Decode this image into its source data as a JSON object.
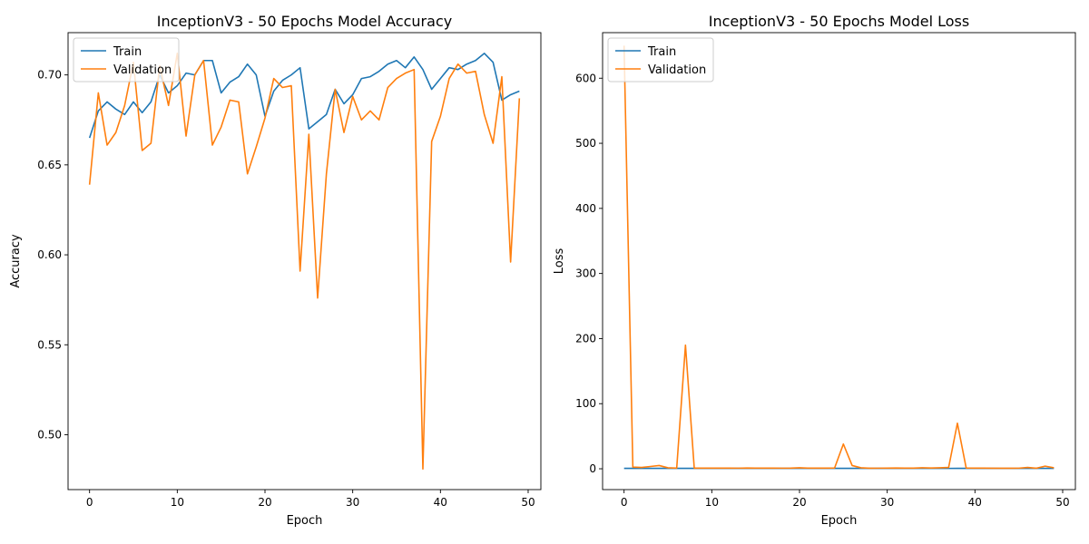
{
  "chart_data": [
    {
      "type": "line",
      "title": "InceptionV3 - 50 Epochs Model Accuracy",
      "xlabel": "Epoch",
      "ylabel": "Accuracy",
      "xlim": [
        -2.45,
        51.45
      ],
      "ylim": [
        0.4695,
        0.7235
      ],
      "xticks": [
        0,
        10,
        20,
        30,
        40,
        50
      ],
      "yticks": [
        0.5,
        0.55,
        0.6,
        0.65,
        0.7
      ],
      "ytick_labels": [
        "0.50",
        "0.55",
        "0.60",
        "0.65",
        "0.70"
      ],
      "grid": false,
      "legend": "upper left",
      "x": [
        0,
        1,
        2,
        3,
        4,
        5,
        6,
        7,
        8,
        9,
        10,
        11,
        12,
        13,
        14,
        15,
        16,
        17,
        18,
        19,
        20,
        21,
        22,
        23,
        24,
        25,
        26,
        27,
        28,
        29,
        30,
        31,
        32,
        33,
        34,
        35,
        36,
        37,
        38,
        39,
        40,
        41,
        42,
        43,
        44,
        45,
        46,
        47,
        48,
        49
      ],
      "series": [
        {
          "name": "Train",
          "color": "#1f77b4",
          "values": [
            0.665,
            0.68,
            0.685,
            0.681,
            0.678,
            0.685,
            0.679,
            0.685,
            0.7,
            0.69,
            0.694,
            0.701,
            0.7,
            0.708,
            0.708,
            0.69,
            0.696,
            0.699,
            0.706,
            0.7,
            0.677,
            0.691,
            0.697,
            0.7,
            0.704,
            0.67,
            0.674,
            0.678,
            0.692,
            0.684,
            0.689,
            0.698,
            0.699,
            0.702,
            0.706,
            0.708,
            0.704,
            0.71,
            0.703,
            0.692,
            0.698,
            0.704,
            0.703,
            0.706,
            0.708,
            0.712,
            0.707,
            0.686,
            0.689,
            0.691
          ]
        },
        {
          "name": "Validation",
          "color": "#ff7f0e",
          "values": [
            0.639,
            0.69,
            0.661,
            0.668,
            0.683,
            0.707,
            0.658,
            0.662,
            0.705,
            0.683,
            0.712,
            0.666,
            0.7,
            0.708,
            0.661,
            0.671,
            0.686,
            0.685,
            0.645,
            0.66,
            0.676,
            0.698,
            0.693,
            0.694,
            0.591,
            0.667,
            0.576,
            0.645,
            0.692,
            0.668,
            0.688,
            0.675,
            0.68,
            0.675,
            0.693,
            0.698,
            0.701,
            0.703,
            0.481,
            0.663,
            0.677,
            0.698,
            0.706,
            0.701,
            0.702,
            0.678,
            0.662,
            0.699,
            0.596,
            0.687
          ]
        }
      ]
    },
    {
      "type": "line",
      "title": "InceptionV3 - 50 Epochs Model Loss",
      "xlabel": "Epoch",
      "ylabel": "Loss",
      "xlim": [
        -2.45,
        51.45
      ],
      "ylim": [
        -32,
        670
      ],
      "xticks": [
        0,
        10,
        20,
        30,
        40,
        50
      ],
      "yticks": [
        0,
        100,
        200,
        300,
        400,
        500,
        600
      ],
      "ytick_labels": [
        "0",
        "100",
        "200",
        "300",
        "400",
        "500",
        "600"
      ],
      "grid": false,
      "legend": "upper left",
      "x": [
        0,
        1,
        2,
        3,
        4,
        5,
        6,
        7,
        8,
        9,
        10,
        11,
        12,
        13,
        14,
        15,
        16,
        17,
        18,
        19,
        20,
        21,
        22,
        23,
        24,
        25,
        26,
        27,
        28,
        29,
        30,
        31,
        32,
        33,
        34,
        35,
        36,
        37,
        38,
        39,
        40,
        41,
        42,
        43,
        44,
        45,
        46,
        47,
        48,
        49
      ],
      "series": [
        {
          "name": "Train",
          "color": "#1f77b4",
          "values": [
            0.7,
            0.65,
            0.63,
            0.64,
            0.65,
            0.63,
            0.64,
            0.63,
            0.61,
            0.62,
            0.61,
            0.6,
            0.61,
            0.59,
            0.59,
            0.61,
            0.6,
            0.6,
            0.59,
            0.6,
            0.62,
            0.61,
            0.6,
            0.59,
            0.59,
            0.62,
            0.62,
            0.61,
            0.6,
            0.61,
            0.6,
            0.59,
            0.59,
            0.59,
            0.58,
            0.58,
            0.58,
            0.57,
            0.58,
            0.59,
            0.58,
            0.57,
            0.58,
            0.57,
            0.57,
            0.56,
            0.57,
            0.6,
            0.59,
            0.59
          ]
        },
        {
          "name": "Validation",
          "color": "#ff7f0e",
          "values": [
            650,
            2.5,
            2.0,
            3.5,
            5.0,
            1.5,
            1.0,
            190,
            1.0,
            1.0,
            1.0,
            1.0,
            1.0,
            0.9,
            1.2,
            1.0,
            1.0,
            1.0,
            0.9,
            1.0,
            1.5,
            1.0,
            1.0,
            1.0,
            1.2,
            38,
            5.0,
            1.5,
            0.8,
            0.9,
            1.0,
            1.2,
            1.0,
            1.0,
            1.5,
            1.2,
            1.5,
            2.0,
            70,
            1.2,
            1.0,
            1.0,
            0.8,
            0.8,
            0.8,
            0.9,
            2.0,
            0.8,
            4.0,
            1.5
          ]
        }
      ]
    }
  ]
}
